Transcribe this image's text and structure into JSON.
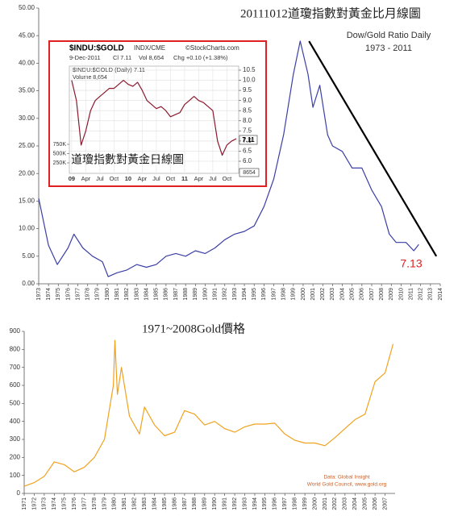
{
  "chart_data": [
    {
      "type": "line",
      "title": "20111012道瓊指數對黃金比月線圖",
      "subtitle": "Dow/Gold Ratio Daily",
      "period": "1973 - 2011",
      "last_label": "7.13",
      "color": "#3b3fa5",
      "grid": false,
      "x": [
        1973,
        1974,
        1974.9,
        1976,
        1976.6,
        1977.5,
        1978.5,
        1979.5,
        1980.1,
        1981,
        1982,
        1983,
        1984,
        1985,
        1986,
        1987,
        1988,
        1989,
        1990,
        1991,
        1992,
        1993,
        1994,
        1995,
        1996,
        1997,
        1998,
        1999,
        1999.7,
        2000.5,
        2001,
        2001.7,
        2002.5,
        2003,
        2004,
        2005,
        2006,
        2007,
        2008,
        2008.8,
        2009.5,
        2010.5,
        2011.3,
        2011.8
      ],
      "values": [
        15.5,
        7,
        3.5,
        6.5,
        9,
        6.5,
        5,
        4,
        1.3,
        2,
        2.5,
        3.5,
        3,
        3.5,
        5,
        5.5,
        5,
        6,
        5.5,
        6.5,
        8,
        9,
        9.5,
        10.5,
        14,
        19,
        27,
        38,
        44,
        38,
        32,
        36,
        27,
        25,
        24,
        21,
        21,
        17,
        14,
        9,
        7.5,
        7.5,
        6,
        7.13
      ],
      "trendline": {
        "x": [
          2000.6,
          2013.6
        ],
        "values": [
          44,
          5
        ],
        "color": "#000000"
      },
      "xlim": [
        1973,
        2014
      ],
      "xticks": [
        1973,
        1974,
        1975,
        1976,
        1977,
        1978,
        1979,
        1980,
        1981,
        1982,
        1983,
        1984,
        1985,
        1986,
        1987,
        1988,
        1989,
        1990,
        1991,
        1992,
        1993,
        1994,
        1995,
        1996,
        1997,
        1998,
        1999,
        2000,
        2001,
        2002,
        2003,
        2004,
        2005,
        2006,
        2007,
        2008,
        2009,
        2010,
        2011,
        2012,
        2013,
        2014
      ],
      "ylim": [
        0,
        50
      ],
      "yticks": [
        {
          "value": 0,
          "label": "0.00"
        },
        {
          "value": 5,
          "label": "5.00"
        },
        {
          "value": 10,
          "label": "10.00"
        },
        {
          "value": 15,
          "label": "15.00"
        },
        {
          "value": 20,
          "label": "20.00"
        },
        {
          "value": 25,
          "label": "25.00"
        },
        {
          "value": 30,
          "label": "30.00"
        },
        {
          "value": 35,
          "label": "35.00"
        },
        {
          "value": 40,
          "label": "40.00"
        },
        {
          "value": 45,
          "label": "45.00"
        },
        {
          "value": 50,
          "label": "50.00"
        }
      ]
    },
    {
      "type": "line",
      "symbol": "$INDU:$GOLD",
      "exchange": "INDX/CME",
      "source": "©StockCharts.com",
      "date": "9-Dec-2011",
      "close": "Cl 7.11",
      "volume": "Vol 8,654",
      "change": "Chg +0.10 (+1.38%)",
      "legend_price": "$INDU:$GOLD (Daily) 7.11",
      "legend_volume": "Volume 8,654",
      "annotation": "道瓊指數對黃金日線圖",
      "volume_box": "8654",
      "color": "#8b1a2e",
      "grid": true,
      "categories": [
        "09",
        null,
        null,
        "Apr",
        null,
        null,
        "Jul",
        null,
        null,
        "Oct",
        null,
        null,
        "10",
        null,
        null,
        "Apr",
        null,
        null,
        "Jul",
        null,
        null,
        "Oct",
        null,
        null,
        "11",
        null,
        null,
        "Apr",
        null,
        null,
        "Jul",
        null,
        null,
        "Oct",
        null,
        null
      ],
      "values": [
        10.0,
        9.0,
        6.8,
        7.5,
        8.5,
        9.0,
        9.2,
        9.4,
        9.6,
        9.6,
        9.8,
        10.0,
        9.8,
        9.7,
        9.9,
        9.5,
        9.0,
        8.8,
        8.6,
        8.7,
        8.5,
        8.2,
        8.3,
        8.4,
        8.8,
        9.0,
        9.2,
        9.0,
        8.9,
        8.7,
        8.5,
        7.0,
        6.3,
        6.8,
        7.0,
        7.11
      ],
      "ylim": [
        6,
        10.5
      ],
      "yticks": [
        {
          "value": 6,
          "label": "6.0"
        },
        6.5,
        {
          "value": 7,
          "label": "7.0"
        },
        7.5,
        {
          "value": 8,
          "label": "8.0"
        },
        8.5,
        {
          "value": 9,
          "label": "9.0"
        },
        9.5,
        {
          "value": 10,
          "label": "10.0"
        },
        10.5
      ],
      "y2lim": [
        0,
        1000000
      ],
      "y2ticks": [
        {
          "value": 250000,
          "label": "250K"
        },
        {
          "value": 500000,
          "label": "500K"
        },
        {
          "value": 750000,
          "label": "750K"
        }
      ]
    },
    {
      "type": "line",
      "title": "1971~2008Gold價格",
      "source_1": "Data: Global Insight",
      "source_2": "World Gold Council, www.gold.org",
      "color": "#f0a21e",
      "grid": false,
      "x": [
        1971,
        1972,
        1973,
        1974,
        1975,
        1976,
        1977,
        1978,
        1979,
        1979.9,
        1980.05,
        1980.3,
        1980.7,
        1981.5,
        1982.5,
        1983,
        1984,
        1985,
        1986,
        1987,
        1988,
        1989,
        1990,
        1991,
        1992,
        1993,
        1994,
        1995,
        1996,
        1997,
        1998,
        1999,
        2000,
        2001,
        2002,
        2003,
        2004,
        2005,
        2006,
        2007,
        2007.8
      ],
      "values": [
        40,
        60,
        95,
        175,
        160,
        120,
        145,
        200,
        300,
        600,
        850,
        550,
        700,
        430,
        330,
        480,
        380,
        320,
        340,
        460,
        440,
        380,
        400,
        360,
        340,
        370,
        385,
        385,
        390,
        330,
        295,
        280,
        280,
        265,
        310,
        360,
        410,
        440,
        620,
        670,
        830
      ],
      "xlim": [
        1971,
        2008
      ],
      "xticks": [
        1971,
        1972,
        1973,
        1974,
        1975,
        1976,
        1977,
        1978,
        1979,
        1980,
        1981,
        1982,
        1983,
        1984,
        1985,
        1986,
        1987,
        1988,
        1989,
        1990,
        1991,
        1992,
        1993,
        1994,
        1995,
        1996,
        1997,
        1998,
        1999,
        2000,
        2001,
        2002,
        2003,
        2004,
        2005,
        2006,
        2007
      ],
      "ylim": [
        0,
        900
      ],
      "yticks": [
        0,
        100,
        200,
        300,
        400,
        500,
        600,
        700,
        800,
        900
      ]
    }
  ]
}
